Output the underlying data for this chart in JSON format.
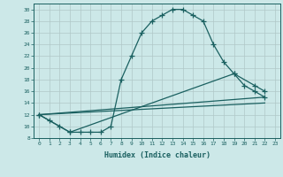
{
  "xlabel": "Humidex (Indice chaleur)",
  "bg_color": "#cce8e8",
  "grid_color": "#b0c8c8",
  "line_color": "#1a6060",
  "xlim": [
    -0.5,
    23.5
  ],
  "ylim": [
    8,
    31
  ],
  "xticks": [
    0,
    1,
    2,
    3,
    4,
    5,
    6,
    7,
    8,
    9,
    10,
    11,
    12,
    13,
    14,
    15,
    16,
    17,
    18,
    19,
    20,
    21,
    22,
    23
  ],
  "xtick_labels": [
    "0",
    "1",
    "2",
    "3",
    "4",
    "5",
    "6",
    "7",
    "8",
    "9",
    "10",
    "11",
    "12",
    "13",
    "14",
    "15",
    "16",
    "17",
    "18",
    "19",
    "20",
    "21",
    "22",
    "23"
  ],
  "yticks": [
    8,
    10,
    12,
    14,
    16,
    18,
    20,
    22,
    24,
    26,
    28,
    30
  ],
  "ytick_labels": [
    "8",
    "10",
    "12",
    "14",
    "16",
    "18",
    "20",
    "22",
    "24",
    "26",
    "28",
    "30"
  ],
  "line1_x": [
    0,
    1,
    2,
    3,
    4,
    5,
    6,
    7,
    8,
    9,
    10,
    11,
    12,
    13,
    14,
    15,
    16,
    17,
    18,
    19,
    20,
    21,
    22
  ],
  "line1_y": [
    12,
    11,
    10,
    9,
    9,
    9,
    9,
    10,
    18,
    22,
    26,
    28,
    29,
    30,
    30,
    29,
    28,
    24,
    21,
    19,
    17,
    16,
    15
  ],
  "line2_x": [
    0,
    3,
    19,
    21,
    22
  ],
  "line2_y": [
    12,
    9,
    19,
    17,
    16
  ],
  "line3_x": [
    0,
    22
  ],
  "line3_y": [
    12,
    15
  ],
  "line4_x": [
    0,
    22
  ],
  "line4_y": [
    12,
    14
  ]
}
